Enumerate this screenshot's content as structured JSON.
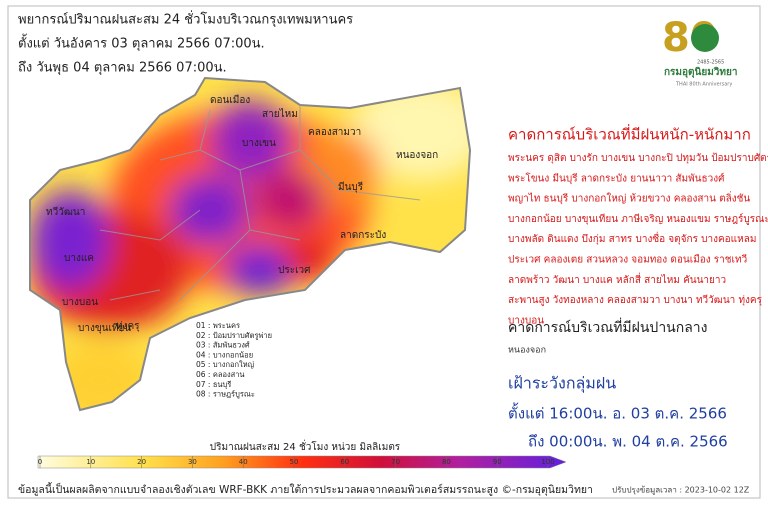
{
  "header": {
    "title": "พยากรณ์ปริมาณฝนสะสม 24 ชั่วโมงบริเวณกรุงเทพมหานคร",
    "from": "ตั้งแต่ วันอังคาร 03 ตุลาคม 2566 07:00น.",
    "to": "ถึง วันพุธ 04 ตุลาคม 2566 07:00น."
  },
  "logo": {
    "number": "80",
    "years": "2485-2565",
    "name": "กรมอุตุนิยมวิทยา",
    "anniversary": "THAI 80th Anniversary"
  },
  "heavy": {
    "heading": "คาดการณ์บริเวณที่มีฝนหนัก-หนักมาก",
    "lines": [
      "พระนคร ดุสิต บางรัก บางเขน บางกะปิ ปทุมวัน ป้อมปราบศัตรูพ่าย",
      "พระโขนง มีนบุรี ลาดกระบัง ยานนาวา สัมพันธวงศ์",
      "พญาไท ธนบุรี บางกอกใหญ่ ห้วยขวาง คลองสาน ตลิ่งชัน",
      "บางกอกน้อย บางขุนเทียน ภาษีเจริญ หนองแขม ราษฎร์บูรณะ",
      "บางพลัด ดินแดง บึงกุ่ม สาทร บางซื่อ จตุจักร บางคอแหลม",
      "ประเวศ คลองเตย สวนหลวง จอมทอง ดอนเมือง ราชเทวี",
      "ลาดพร้าว วัฒนา บางแค หลักสี่ สายไหม คันนายาว",
      "สะพานสูง วังทองหลาง คลองสามวา บางนา ทวีวัฒนา ทุ่งครุ",
      "บางบอน"
    ]
  },
  "moderate": {
    "heading": "คาดการณ์บริเวณที่มีฝนปานกลาง",
    "lines": [
      "หนองจอก"
    ]
  },
  "watch": {
    "heading": "เฝ้าระวังกลุ่มฝน",
    "from": "ตั้งแต่ 16:00น. อ. 03 ต.ค. 2566",
    "to": "ถึง 00:00น. พ. 04 ต.ค. 2566"
  },
  "map_labels": [
    "ดอนเมือง",
    "สายไหม",
    "บางเขน",
    "คลองสามวา",
    "หนองจอก",
    "มีนบุรี",
    "ลาดกระบัง",
    "ทวีวัฒนา",
    "บางแค",
    "บางบอน",
    "บางขุนเทียน",
    "ทุ่งครุ",
    "ประเวศ"
  ],
  "district_key": [
    "01 : พระนคร",
    "02 : ป้อมปราบศัตรูพ่าย",
    "03 : สัมพันธวงศ์",
    "04 : บางกอกน้อย",
    "05 : บางกอกใหญ่",
    "06 : คลองสาน",
    "07 : ธนบุรี",
    "08 : ราษฎร์บูรณะ"
  ],
  "colorbar": {
    "label": "ปริมาณฝนสะสม 24 ชั่วโมง หน่วย มิลลิเมตร",
    "lim": [
      0,
      100
    ],
    "ticks": [
      0,
      10,
      20,
      30,
      40,
      50,
      60,
      70,
      80,
      90,
      100
    ]
  },
  "footer": {
    "source": "ข้อมูลนี้เป็นผลผลิตจากแบบจำลองเชิงตัวเลข WRF-BKK ภายใต้การประมวลผลจากคอมพิวเตอร์สมรรถนะสูง ©-กรมอุตุนิยมวิทยา",
    "updated": "ปรับปรุงข้อมูลเวลา : 2023-10-02 12Z"
  }
}
